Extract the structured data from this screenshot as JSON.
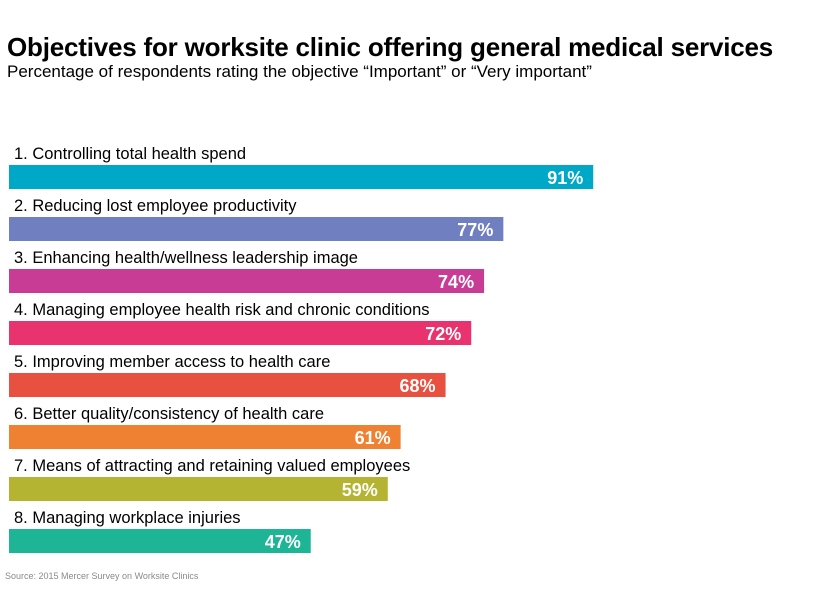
{
  "header": {
    "title": "Objectives for worksite clinic offering general medical services",
    "subtitle": "Percentage of respondents rating the objective “Important” or “Very important”"
  },
  "footer": {
    "source": "Source: 2015 Mercer Survey on Worksite Clinics"
  },
  "chart_data": {
    "type": "bar",
    "orientation": "horizontal",
    "title": "Objectives for worksite clinic offering general medical services",
    "subtitle": "Percentage of respondents rating the objective “Important” or “Very important”",
    "xlim": [
      0,
      100
    ],
    "grid": false,
    "legend": "none",
    "categories": [
      "1. Controlling total health spend",
      "2. Reducing lost employee productivity",
      "3. Enhancing health/wellness leadership image",
      "4. Managing employee health risk and chronic conditions",
      "5. Improving member access to health care",
      "6. Better quality/consistency of health care",
      "7. Means of attracting and retaining valued employees",
      "8. Managing workplace injuries"
    ],
    "values": [
      91,
      77,
      74,
      72,
      68,
      61,
      59,
      47
    ],
    "value_labels": [
      "91%",
      "77%",
      "74%",
      "72%",
      "68%",
      "61%",
      "59%",
      "47%"
    ],
    "colors": [
      "#00a8c8",
      "#6f7fbf",
      "#c83c96",
      "#e8336e",
      "#e85040",
      "#ee8232",
      "#b4b432",
      "#1eb496"
    ]
  }
}
